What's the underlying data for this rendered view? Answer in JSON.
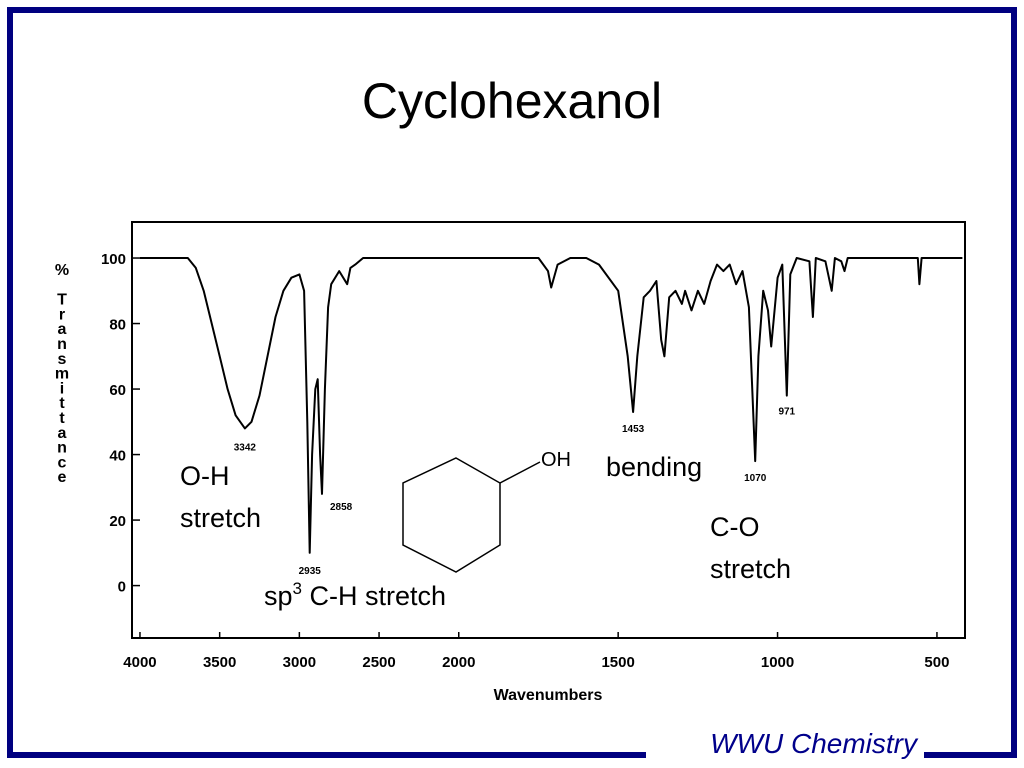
{
  "title": "Cyclohexanol",
  "footer": "WWU Chemistry",
  "molecule_label": "OH",
  "annotations": {
    "oh": [
      "O-H",
      "stretch"
    ],
    "ch": {
      "pre": "sp",
      "sup": "3",
      "post": " C-H stretch"
    },
    "bend": "bending",
    "co": [
      "C-O",
      "stretch"
    ]
  },
  "chart_data": {
    "type": "line",
    "xlabel": "Wavenumbers",
    "ylabel": "% Transmittance",
    "xlim": [
      4050,
      412
    ],
    "x_stretch_below": {
      "value": 2000,
      "factor": 2
    },
    "xticks": [
      4000,
      3500,
      3000,
      2500,
      2000,
      1500,
      1000,
      500
    ],
    "ylim": [
      -16,
      111
    ],
    "yticks": [
      0,
      20,
      40,
      60,
      80,
      100
    ],
    "x": [
      4000,
      3700,
      3650,
      3600,
      3550,
      3500,
      3450,
      3400,
      3342,
      3300,
      3250,
      3200,
      3150,
      3100,
      3050,
      3000,
      2970,
      2950,
      2935,
      2920,
      2900,
      2885,
      2870,
      2858,
      2840,
      2820,
      2800,
      2750,
      2700,
      2680,
      2650,
      2600,
      2000,
      1750,
      1720,
      1710,
      1690,
      1650,
      1600,
      1560,
      1500,
      1470,
      1453,
      1440,
      1420,
      1400,
      1380,
      1365,
      1355,
      1340,
      1320,
      1300,
      1290,
      1270,
      1250,
      1230,
      1210,
      1190,
      1170,
      1150,
      1130,
      1110,
      1090,
      1070,
      1060,
      1045,
      1030,
      1020,
      1000,
      985,
      971,
      960,
      940,
      900,
      889,
      880,
      850,
      830,
      820,
      800,
      790,
      780,
      560,
      555,
      548,
      420
    ],
    "series": [
      {
        "color": "#000000",
        "values": [
          100,
          100,
          97,
          90,
          80,
          70,
          60,
          52,
          48,
          50,
          58,
          70,
          82,
          90,
          94,
          95,
          90,
          50,
          10,
          40,
          60,
          63,
          40,
          28,
          60,
          85,
          92,
          96,
          92,
          97,
          98,
          100,
          100,
          100,
          96,
          91,
          98,
          100,
          100,
          98,
          90,
          70,
          53,
          70,
          88,
          90,
          93,
          75,
          70,
          88,
          90,
          86,
          90,
          84,
          90,
          86,
          93,
          98,
          96,
          98,
          92,
          96,
          85,
          38,
          70,
          90,
          84,
          73,
          94,
          98,
          58,
          95,
          100,
          99,
          82,
          100,
          99,
          90,
          100,
          99,
          96,
          100,
          100,
          92,
          100,
          100
        ]
      }
    ],
    "peaks": [
      {
        "x": 3342,
        "y": 48
      },
      {
        "x": 2935,
        "y": 10
      },
      {
        "x": 2858,
        "y": 28
      },
      {
        "x": 1453,
        "y": 53
      },
      {
        "x": 1070,
        "y": 38
      },
      {
        "x": 971,
        "y": 58
      }
    ]
  }
}
